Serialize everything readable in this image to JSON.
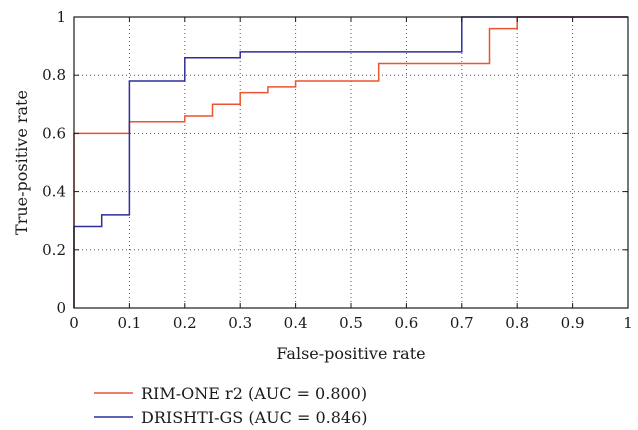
{
  "chart_data": {
    "type": "line",
    "title": "",
    "xlabel": "False-positive rate",
    "ylabel": "True-positive rate",
    "xlim": [
      0,
      1
    ],
    "ylim": [
      0,
      1
    ],
    "x_ticks": [
      0,
      0.1,
      0.2,
      0.3,
      0.4,
      0.5,
      0.6,
      0.7,
      0.8,
      0.9,
      1
    ],
    "x_tick_labels": [
      "0",
      "0.1",
      "0.2",
      "0.3",
      "0.4",
      "0.5",
      "0.6",
      "0.7",
      "0.8",
      "0.9",
      "1"
    ],
    "y_ticks": [
      0,
      0.2,
      0.4,
      0.6,
      0.8,
      1
    ],
    "y_tick_labels": [
      "0",
      "0.2",
      "0.4",
      "0.6",
      "0.8",
      "1"
    ],
    "grid": true,
    "legend_position": "bottom-center",
    "series": [
      {
        "name": "RIM-ONE r2 (AUC = 0.800)",
        "color": "#e8552e",
        "step": true,
        "points": [
          [
            0,
            0
          ],
          [
            0,
            0.6
          ],
          [
            0.1,
            0.6
          ],
          [
            0.1,
            0.64
          ],
          [
            0.2,
            0.64
          ],
          [
            0.2,
            0.66
          ],
          [
            0.25,
            0.66
          ],
          [
            0.25,
            0.7
          ],
          [
            0.3,
            0.7
          ],
          [
            0.3,
            0.74
          ],
          [
            0.35,
            0.74
          ],
          [
            0.35,
            0.76
          ],
          [
            0.4,
            0.76
          ],
          [
            0.4,
            0.78
          ],
          [
            0.55,
            0.78
          ],
          [
            0.55,
            0.84
          ],
          [
            0.75,
            0.84
          ],
          [
            0.75,
            0.96
          ],
          [
            0.8,
            0.96
          ],
          [
            0.8,
            1.0
          ],
          [
            1.0,
            1.0
          ]
        ]
      },
      {
        "name": "DRISHTI-GS (AUC = 0.846)",
        "color": "#2e2e9c",
        "step": true,
        "points": [
          [
            0,
            0
          ],
          [
            0,
            0.28
          ],
          [
            0.05,
            0.28
          ],
          [
            0.05,
            0.32
          ],
          [
            0.1,
            0.32
          ],
          [
            0.1,
            0.78
          ],
          [
            0.2,
            0.78
          ],
          [
            0.2,
            0.86
          ],
          [
            0.3,
            0.86
          ],
          [
            0.3,
            0.88
          ],
          [
            0.7,
            0.88
          ],
          [
            0.7,
            1.0
          ],
          [
            1.0,
            1.0
          ]
        ]
      }
    ]
  }
}
